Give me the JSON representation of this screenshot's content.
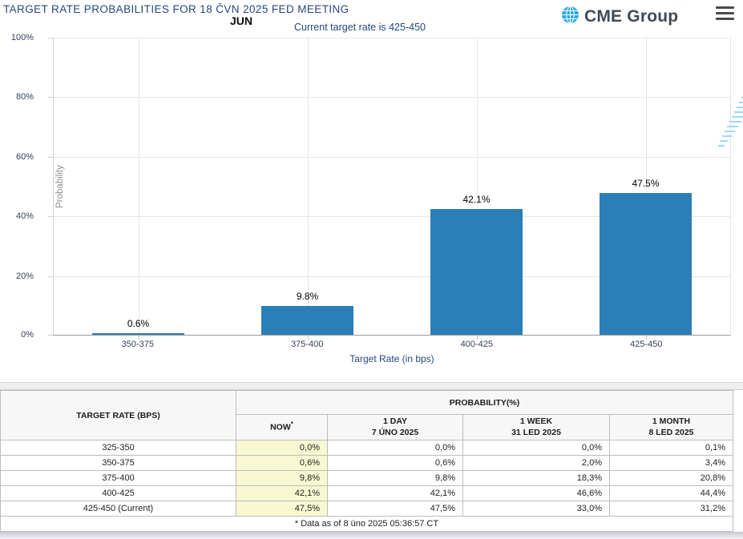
{
  "header": {
    "title": "TARGET RATE PROBABILITIES FOR 18 ČVN 2025 FED MEETING",
    "month_label": "JUN",
    "current_rate_label": "Current target rate is 425-450",
    "brand_name": "CME Group"
  },
  "chart_data": {
    "type": "bar",
    "title": "Target rate probabilities for 18 ČVN 2025 Fed meeting",
    "categories": [
      "350-375",
      "375-400",
      "400-425",
      "425-450"
    ],
    "values": [
      0.6,
      9.8,
      42.1,
      47.5
    ],
    "labels": [
      "0.6%",
      "9.8%",
      "42.1%",
      "47.5%"
    ],
    "xlabel": "Target Rate (in bps)",
    "ylabel": "Probability",
    "ylim": [
      0,
      100
    ],
    "yticks": [
      "100%",
      "80%",
      "60%",
      "40%",
      "20%",
      "0%"
    ],
    "grid": true,
    "legend": "none",
    "bar_color": "#2a7fb8",
    "watermark_letter": "Q"
  },
  "table": {
    "header": {
      "target_rate": "TARGET RATE (BPS)",
      "probability": "PROBABILITY(%)",
      "now": "NOW",
      "now_sup": "*",
      "cols": [
        {
          "label": "1 DAY",
          "date": "7 ÚNO 2025"
        },
        {
          "label": "1 WEEK",
          "date": "31 LED 2025"
        },
        {
          "label": "1 MONTH",
          "date": "8 LED 2025"
        }
      ]
    },
    "rows": [
      {
        "rate": "325-350",
        "values": [
          "0,0%",
          "0,0%",
          "0,0%",
          "0,1%"
        ]
      },
      {
        "rate": "350-375",
        "values": [
          "0,6%",
          "0,6%",
          "2,0%",
          "3,4%"
        ]
      },
      {
        "rate": "375-400",
        "values": [
          "9,8%",
          "9,8%",
          "18,3%",
          "20,8%"
        ]
      },
      {
        "rate": "400-425",
        "values": [
          "42,1%",
          "42,1%",
          "46,6%",
          "44,4%"
        ]
      },
      {
        "rate": "425-450 (Current)",
        "values": [
          "47,5%",
          "47,5%",
          "33,0%",
          "31,2%"
        ]
      }
    ],
    "footnote": "* Data as of 8 úno 2025 05:36:57 CT"
  },
  "colors": {
    "title_blue": "#27477e",
    "bar_blue": "#2a7fb8",
    "now_highlight": "#f8f8d2",
    "brand_globe": "#2aa9e0",
    "axis_label": "#35415c"
  }
}
